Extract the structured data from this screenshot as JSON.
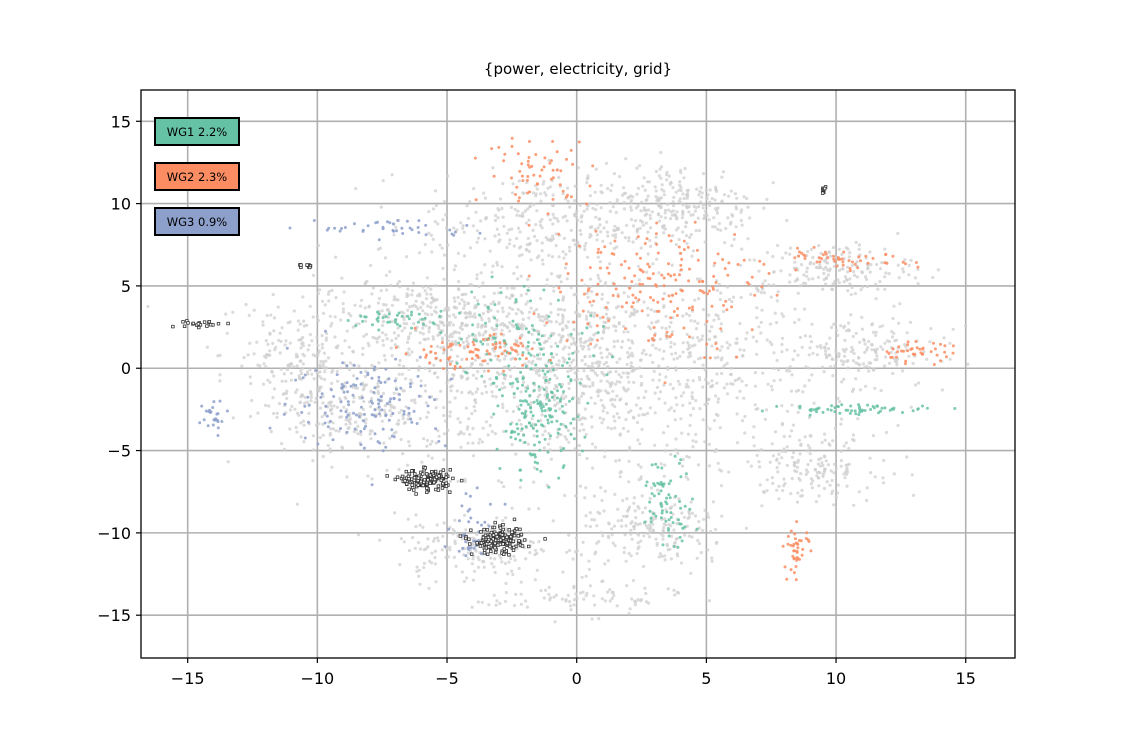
{
  "chart_data": {
    "type": "scatter",
    "title": "{power, electricity, grid}",
    "xlabel": "",
    "ylabel": "",
    "xlim": [
      -16.8,
      16.9
    ],
    "ylim": [
      -17.6,
      16.9
    ],
    "xticks": [
      -15,
      -10,
      -5,
      0,
      5,
      10,
      15
    ],
    "yticks": [
      15,
      10,
      5,
      0,
      -5,
      -10,
      -15
    ],
    "xtick_labels": [
      "−15",
      "−10",
      "−5",
      "0",
      "5",
      "10",
      "15"
    ],
    "ytick_labels": [
      "15",
      "10",
      "5",
      "0",
      "−5",
      "−10",
      "−15"
    ],
    "grid": true,
    "legend_position": "top-left",
    "background_color": "#cfcfcf",
    "highlight_color": "#333333",
    "series": [
      {
        "name": "WG1 2.2%",
        "color": "#66c2a5"
      },
      {
        "name": "WG2 2.3%",
        "color": "#fc8d62"
      },
      {
        "name": "WG3 0.9%",
        "color": "#8da0cb"
      }
    ]
  }
}
